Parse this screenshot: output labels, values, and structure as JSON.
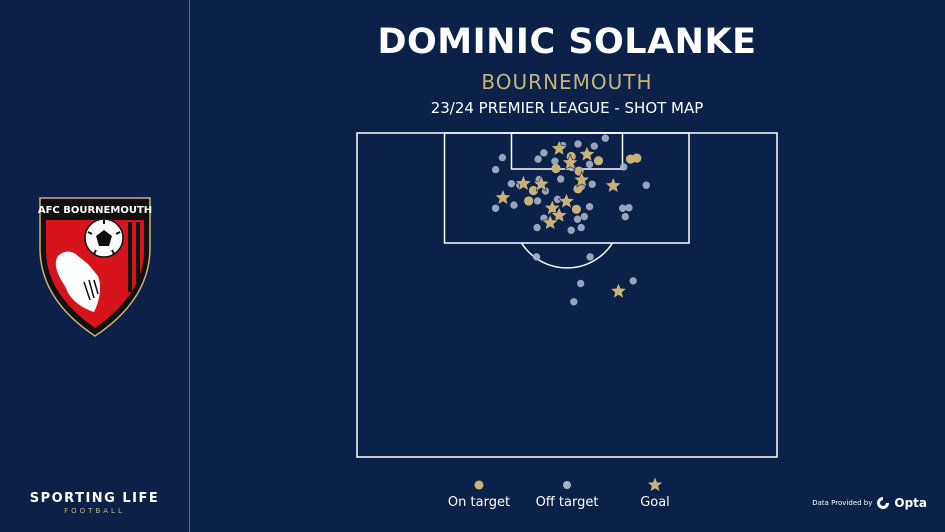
{
  "header": {
    "title": "DOMINIC SOLANKE",
    "club": "BOURNEMOUTH",
    "subtitle": "23/24 PREMIER LEAGUE - SHOT MAP"
  },
  "crest": {
    "text": "AFC BOURNEMOUTH",
    "colors": {
      "red": "#d7131b",
      "black": "#111111",
      "gold": "#c9b27a"
    }
  },
  "brand": {
    "name": "SPORTING LIFE",
    "tagline": "FOOTBALL"
  },
  "provider": {
    "prefix": "Data Provided by",
    "name": "Opta"
  },
  "legend": {
    "on_target": "On target",
    "off_target": "Off target",
    "goal": "Goal"
  },
  "colors": {
    "background": "#0b2149",
    "on_target": "#c9b27a",
    "off_target": "#a9b1c6",
    "goal": "#c9b27a",
    "lines": "#ffffff"
  },
  "chart_data": {
    "type": "scatter",
    "pitch_units": "yards",
    "axis_notes": "x = yards from left touchline, y = yards from goal line",
    "xlim": [
      0,
      80
    ],
    "ylim": [
      0,
      62
    ],
    "shots": {
      "goal": [
        [
          38.5,
          3.0
        ],
        [
          43.8,
          4.1
        ],
        [
          40.6,
          5.7
        ],
        [
          42.8,
          9.0
        ],
        [
          48.8,
          10.1
        ],
        [
          31.7,
          9.7
        ],
        [
          35.1,
          9.8
        ],
        [
          27.8,
          12.4
        ],
        [
          39.9,
          13.1
        ],
        [
          37.2,
          14.4
        ],
        [
          38.5,
          15.8
        ],
        [
          36.8,
          17.2
        ],
        [
          49.8,
          30.3
        ]
      ],
      "on_target": [
        [
          40.8,
          4.5
        ],
        [
          46.0,
          5.3
        ],
        [
          52.1,
          5.0
        ],
        [
          53.3,
          4.8
        ],
        [
          42.3,
          7.3
        ],
        [
          37.9,
          6.8
        ],
        [
          42.1,
          10.7
        ],
        [
          33.6,
          11.0
        ],
        [
          41.8,
          14.6
        ],
        [
          32.7,
          13.0
        ]
      ],
      "off_target": [
        [
          47.3,
          1.0
        ],
        [
          39.2,
          2.4
        ],
        [
          42.1,
          2.1
        ],
        [
          45.2,
          2.5
        ],
        [
          27.7,
          4.7
        ],
        [
          35.6,
          3.8
        ],
        [
          34.5,
          5.0
        ],
        [
          37.7,
          5.4
        ],
        [
          40.9,
          6.6
        ],
        [
          44.3,
          6.0
        ],
        [
          50.8,
          6.5
        ],
        [
          26.4,
          7.0
        ],
        [
          38.8,
          8.8
        ],
        [
          34.7,
          8.9
        ],
        [
          29.4,
          9.7
        ],
        [
          31.0,
          10.0
        ],
        [
          35.9,
          11.1
        ],
        [
          42.8,
          10.2
        ],
        [
          44.8,
          9.8
        ],
        [
          55.1,
          10.0
        ],
        [
          26.4,
          14.4
        ],
        [
          29.9,
          13.8
        ],
        [
          34.4,
          13.0
        ],
        [
          38.2,
          12.7
        ],
        [
          44.3,
          14.1
        ],
        [
          50.6,
          14.4
        ],
        [
          51.8,
          14.3
        ],
        [
          51.1,
          16.0
        ],
        [
          35.6,
          16.3
        ],
        [
          42.0,
          16.5
        ],
        [
          42.7,
          18.1
        ],
        [
          40.8,
          18.6
        ],
        [
          43.3,
          16.0
        ],
        [
          34.3,
          18.1
        ],
        [
          34.2,
          23.7
        ],
        [
          44.4,
          23.7
        ],
        [
          52.6,
          28.3
        ],
        [
          42.6,
          28.8
        ],
        [
          41.3,
          32.3
        ]
      ]
    }
  }
}
